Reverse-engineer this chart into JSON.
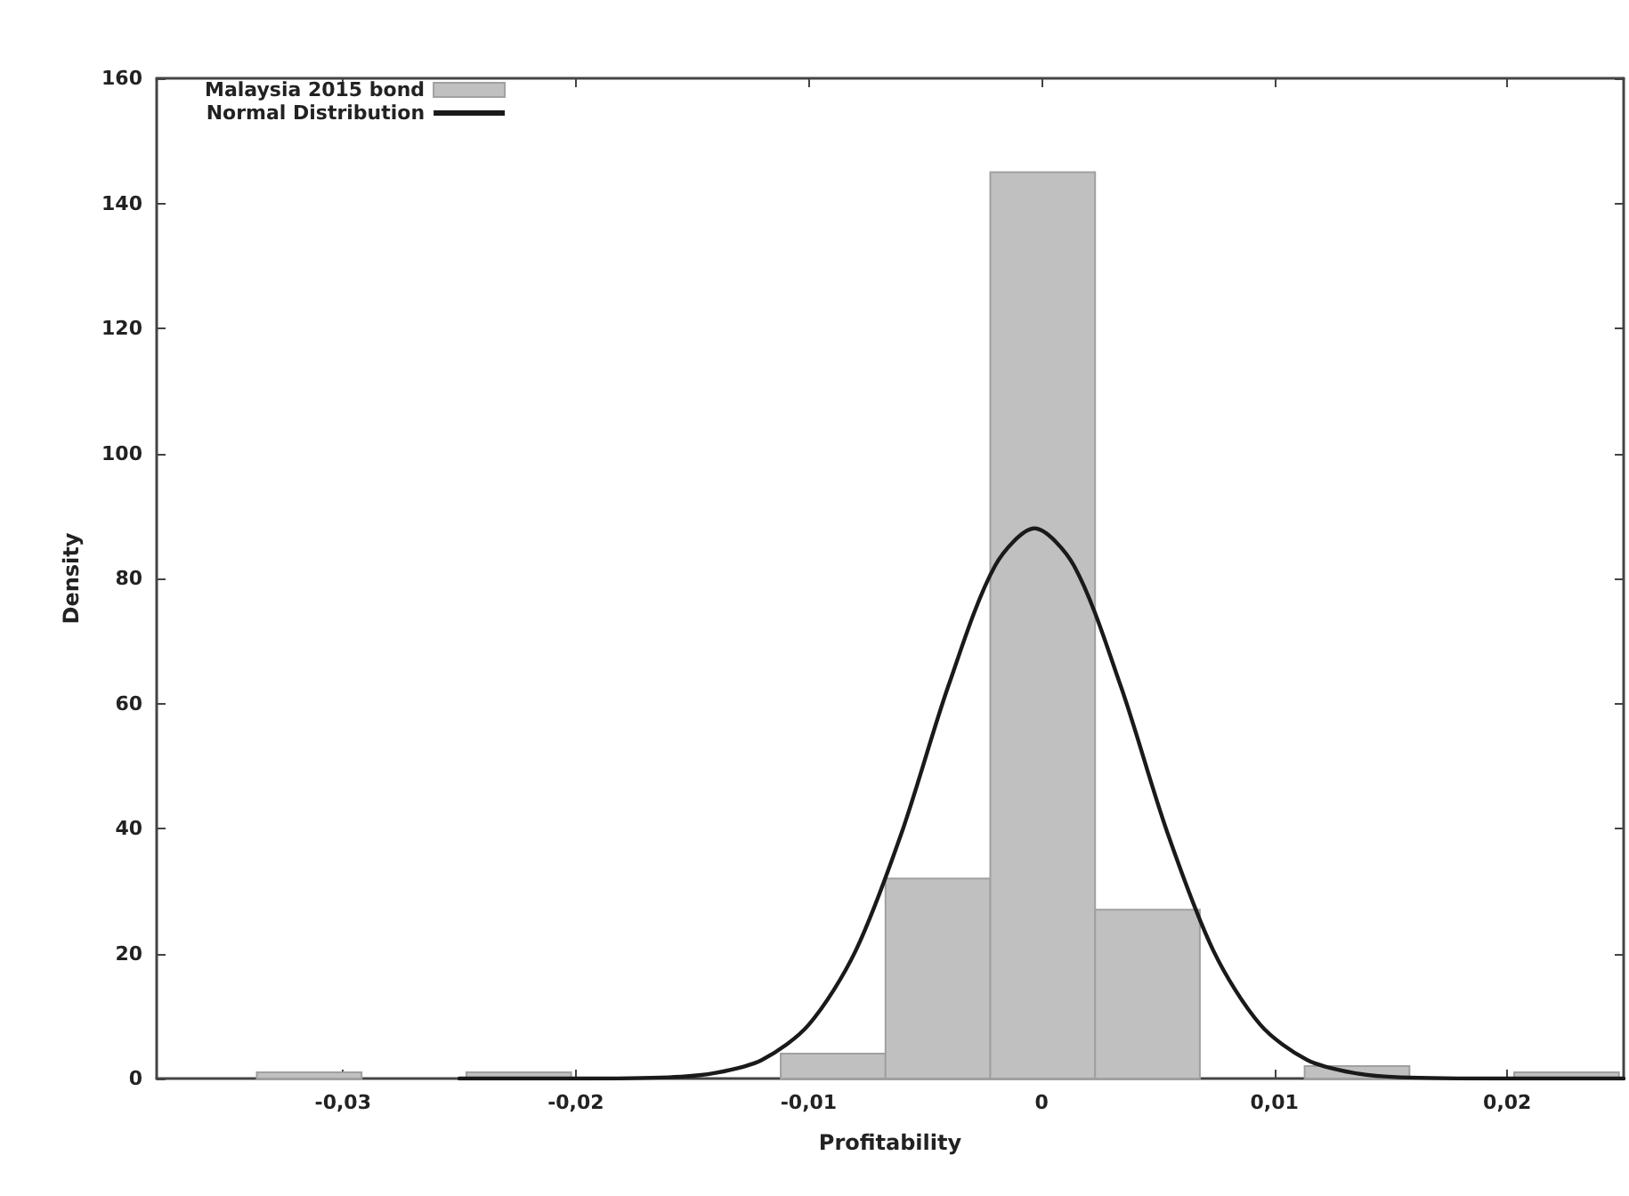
{
  "chart_data": {
    "type": "histogram",
    "xlabel": "Profitability",
    "ylabel": "Density",
    "xlim": [
      -0.038,
      0.025
    ],
    "ylim": [
      0,
      160
    ],
    "xticks": [
      {
        "value": -0.03,
        "label": "-0,03"
      },
      {
        "value": -0.02,
        "label": "-0,02"
      },
      {
        "value": -0.01,
        "label": "-0,01"
      },
      {
        "value": 0,
        "label": "0"
      },
      {
        "value": 0.01,
        "label": "0,01"
      },
      {
        "value": 0.02,
        "label": "0,02"
      }
    ],
    "yticks": [
      0,
      20,
      40,
      60,
      80,
      100,
      120,
      140,
      160
    ],
    "grid": false,
    "legend": "top left",
    "series": [
      {
        "name": "Malaysia 2015 bond",
        "color": "#c0c0c0",
        "bins": [
          -0.0337,
          -0.0292,
          -0.0247,
          -0.0202,
          -0.0157,
          -0.0112,
          -0.0067,
          -0.0022,
          0.0023,
          0.0068,
          0.0113,
          0.0158,
          0.0203,
          0.0248
        ],
        "values": [
          1,
          0,
          1,
          0,
          0,
          4,
          32,
          145,
          27,
          0,
          2,
          0,
          1
        ]
      },
      {
        "type": "line",
        "name": "Normal Distribution",
        "color": "#1a1a1a",
        "x": [
          -0.025,
          -0.02,
          -0.016,
          -0.014,
          -0.012,
          -0.01,
          -0.008,
          -0.006,
          -0.004,
          -0.002,
          -0.0003,
          0.0014,
          0.0034,
          0.0054,
          0.0074,
          0.0094,
          0.0114,
          0.0134,
          0.0154,
          0.02,
          0.025
        ],
        "values": [
          0,
          0,
          0.2,
          0.9,
          3,
          8.6,
          20.3,
          39.4,
          62.8,
          82,
          88,
          82,
          62.8,
          39.4,
          20.3,
          8.6,
          3,
          0.9,
          0.2,
          0,
          0
        ]
      }
    ]
  }
}
